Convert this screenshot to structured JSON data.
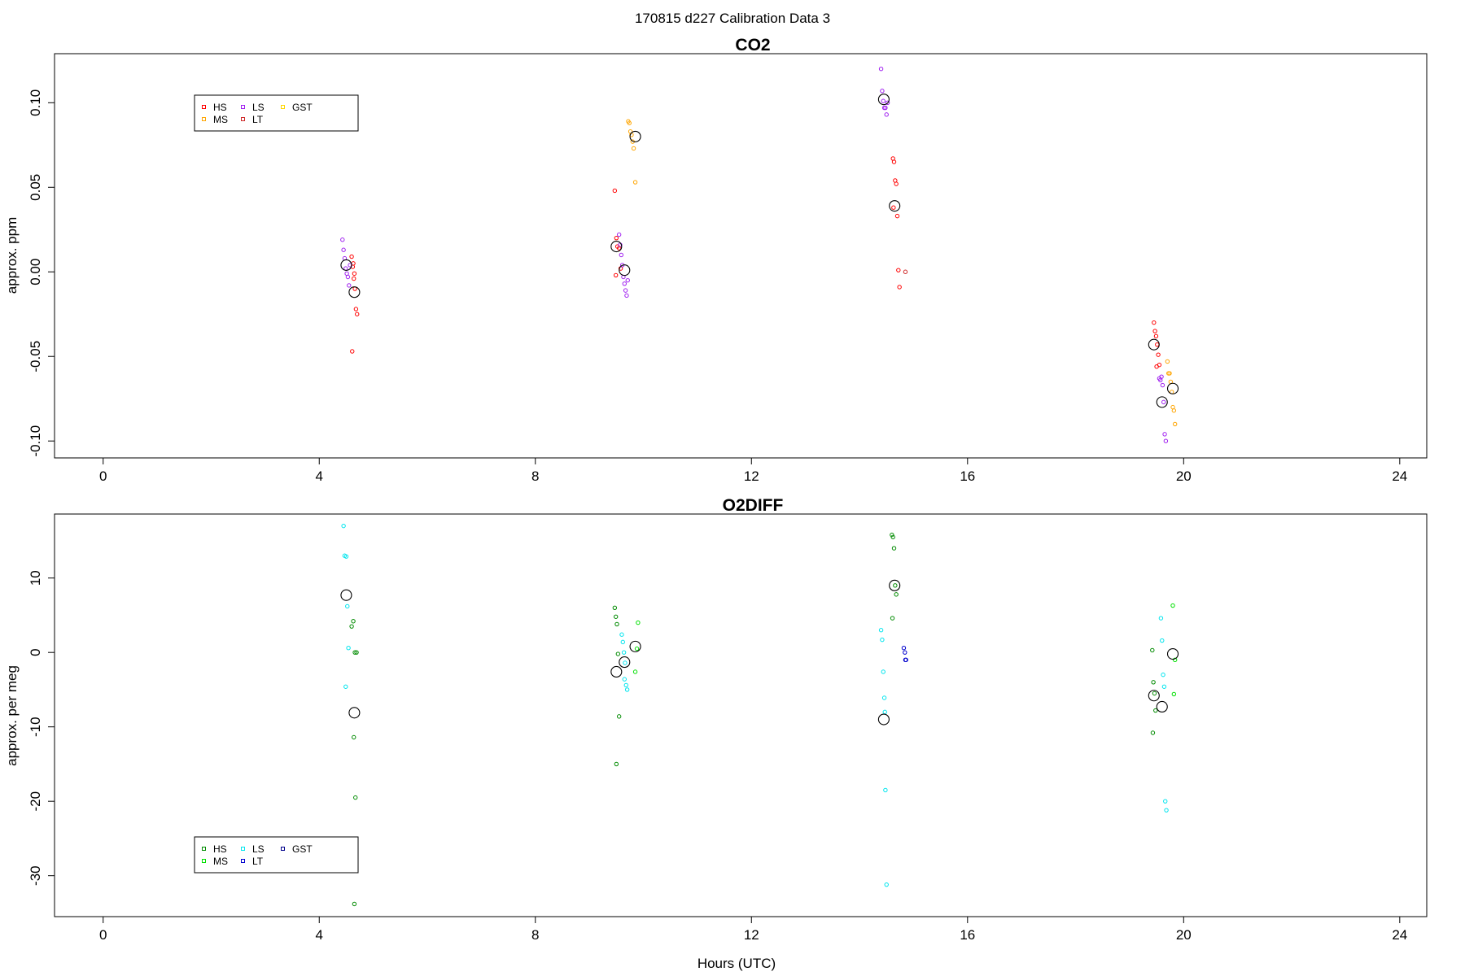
{
  "figure": {
    "title": "170815   d227   Calibration Data 3",
    "xlabel": "Hours (UTC)"
  },
  "chart_data": [
    {
      "type": "scatter",
      "title": "CO2",
      "xlabel": "",
      "ylabel": "approx. ppm",
      "xlim": [
        -0.9,
        24.5
      ],
      "ylim": [
        -0.11,
        0.129
      ],
      "xticks": [
        0,
        4,
        8,
        12,
        16,
        20,
        24
      ],
      "yticks": [
        -0.1,
        -0.05,
        0.0,
        0.05,
        0.1
      ],
      "ytick_labels": [
        "-0.10",
        "-0.05",
        "0.00",
        "0.05",
        "0.10"
      ],
      "grid": false,
      "legend": {
        "placement": "top-left",
        "entries": [
          {
            "label": "HS",
            "color": "#ff0000"
          },
          {
            "label": "MS",
            "color": "#ffa500"
          },
          {
            "label": "LS",
            "color": "#a020f0"
          },
          {
            "label": "LT",
            "color": "#cd2626"
          },
          {
            "label": "GST",
            "color": "#ffd700"
          }
        ]
      },
      "series": [
        {
          "name": "HS",
          "color": "#ff0000",
          "x": [
            4.6,
            4.62,
            4.64,
            4.66,
            4.68,
            4.7,
            4.63,
            4.61,
            4.65,
            9.47,
            9.5,
            9.52,
            9.55,
            9.58,
            9.49,
            14.62,
            14.64,
            14.66,
            14.68,
            14.7,
            14.72,
            14.63,
            14.74,
            19.45,
            19.47,
            19.49,
            19.51,
            19.53,
            19.55,
            19.5
          ],
          "y": [
            0.009,
            0.003,
            -0.004,
            -0.01,
            -0.022,
            -0.025,
            0.005,
            -0.047,
            -0.001,
            0.048,
            0.02,
            0.015,
            0.014,
            0.002,
            -0.002,
            0.067,
            0.065,
            0.054,
            0.052,
            0.033,
            0.001,
            0.038,
            -0.009,
            -0.03,
            -0.035,
            -0.038,
            -0.043,
            -0.049,
            -0.055,
            -0.056
          ]
        },
        {
          "name": "MS",
          "color": "#ffa500",
          "x": [
            9.72,
            9.74,
            9.76,
            9.78,
            9.8,
            9.82,
            9.85,
            19.7,
            19.72,
            19.74,
            19.76,
            19.78,
            19.8,
            19.82,
            19.84
          ],
          "y": [
            0.089,
            0.088,
            0.083,
            0.081,
            0.077,
            0.073,
            0.053,
            -0.053,
            -0.06,
            -0.06,
            -0.065,
            -0.071,
            -0.08,
            -0.082,
            -0.09
          ]
        },
        {
          "name": "LS",
          "color": "#a020f0",
          "x": [
            4.43,
            4.45,
            4.47,
            4.49,
            4.51,
            4.53,
            4.55,
            4.57,
            9.55,
            9.57,
            9.59,
            9.61,
            9.63,
            9.65,
            9.67,
            9.69,
            9.71,
            14.4,
            14.42,
            14.44,
            14.46,
            14.48,
            14.5,
            14.52,
            19.55,
            19.57,
            19.59,
            19.61,
            19.63,
            19.65,
            19.67
          ],
          "y": [
            0.019,
            0.013,
            0.008,
            0.002,
            -0.001,
            -0.003,
            -0.008,
            0.004,
            0.022,
            0.016,
            0.01,
            0.004,
            -0.003,
            -0.007,
            -0.011,
            -0.014,
            -0.005,
            0.12,
            0.107,
            0.101,
            0.097,
            0.097,
            0.093,
            0.1,
            -0.063,
            -0.064,
            -0.062,
            -0.067,
            -0.077,
            -0.096,
            -0.1
          ]
        },
        {
          "name": "LT",
          "color": "#cd2626",
          "x": [
            14.85
          ],
          "y": [
            0.0
          ]
        },
        {
          "name": "GST",
          "color": "#ffd700",
          "x": [],
          "y": []
        },
        {
          "name": "",
          "color": "#000000",
          "marker": "large-circle",
          "x": [
            4.5,
            4.65,
            9.5,
            9.65,
            9.85,
            14.45,
            14.65,
            19.45,
            19.6,
            19.8
          ],
          "y": [
            0.004,
            -0.012,
            0.015,
            0.001,
            0.08,
            0.102,
            0.039,
            -0.043,
            -0.077,
            -0.069
          ]
        }
      ]
    },
    {
      "type": "scatter",
      "title": "O2DIFF",
      "xlabel": "Hours (UTC)",
      "ylabel": "approx. per meg",
      "xlim": [
        -0.9,
        24.5
      ],
      "ylim": [
        -35.5,
        18.6
      ],
      "xticks": [
        0,
        4,
        8,
        12,
        16,
        20,
        24
      ],
      "yticks": [
        -30,
        -20,
        -10,
        0,
        10
      ],
      "ytick_labels": [
        "-30",
        "-20",
        "-10",
        "0",
        "10"
      ],
      "grid": false,
      "legend": {
        "placement": "bottom-left",
        "entries": [
          {
            "label": "HS",
            "color": "#008b00"
          },
          {
            "label": "MS",
            "color": "#00e000"
          },
          {
            "label": "LS",
            "color": "#00e5ee"
          },
          {
            "label": "LT",
            "color": "#0000cd"
          },
          {
            "label": "GST",
            "color": "#00008b"
          }
        ]
      },
      "series": [
        {
          "name": "HS",
          "color": "#008b00",
          "x": [
            4.6,
            4.63,
            4.66,
            4.69,
            4.64,
            4.67,
            4.65,
            9.47,
            9.49,
            9.51,
            9.53,
            9.55,
            9.5,
            14.6,
            14.62,
            14.64,
            14.66,
            14.68,
            14.61,
            19.42,
            19.44,
            19.46,
            19.48,
            19.43
          ],
          "y": [
            3.5,
            4.2,
            0.0,
            0.0,
            -11.4,
            -19.5,
            -33.8,
            6.0,
            4.8,
            3.8,
            -0.2,
            -8.6,
            -15.0,
            15.8,
            15.5,
            14.0,
            9.0,
            7.8,
            4.6,
            0.3,
            -4.0,
            -5.5,
            -7.8,
            -10.8
          ]
        },
        {
          "name": "MS",
          "color": "#00e000",
          "x": [
            9.9,
            9.88,
            9.85,
            19.8,
            19.82,
            19.84
          ],
          "y": [
            4.0,
            0.5,
            -2.6,
            6.3,
            -5.6,
            -1.0
          ]
        },
        {
          "name": "LS",
          "color": "#00e5ee",
          "x": [
            4.45,
            4.47,
            4.5,
            4.52,
            4.54,
            4.49,
            9.6,
            9.62,
            9.64,
            9.66,
            9.68,
            9.7,
            9.65,
            14.4,
            14.42,
            14.44,
            14.46,
            14.48,
            14.5,
            14.47,
            19.58,
            19.6,
            19.62,
            19.64,
            19.66,
            19.68
          ],
          "y": [
            17.0,
            13.0,
            12.9,
            6.2,
            0.6,
            -4.6,
            2.4,
            1.4,
            0.0,
            -1.4,
            -4.4,
            -5.0,
            -3.6,
            3.0,
            1.7,
            -2.6,
            -6.1,
            -18.5,
            -31.2,
            -8.0,
            4.6,
            1.6,
            -3.0,
            -4.6,
            -20.0,
            -21.2
          ]
        },
        {
          "name": "LT",
          "color": "#0000cd",
          "x": [
            14.82,
            14.84,
            14.86,
            14.85
          ],
          "y": [
            0.6,
            0.0,
            -1.0,
            -1.0
          ]
        },
        {
          "name": "GST",
          "color": "#00008b",
          "x": [],
          "y": []
        },
        {
          "name": "",
          "color": "#000000",
          "marker": "large-circle",
          "x": [
            4.5,
            4.65,
            9.5,
            9.65,
            9.85,
            14.45,
            14.65,
            19.45,
            19.6,
            19.8
          ],
          "y": [
            7.7,
            -8.1,
            -2.6,
            -1.3,
            0.8,
            -9.0,
            9.0,
            -5.8,
            -7.3,
            -0.2
          ]
        }
      ]
    }
  ]
}
